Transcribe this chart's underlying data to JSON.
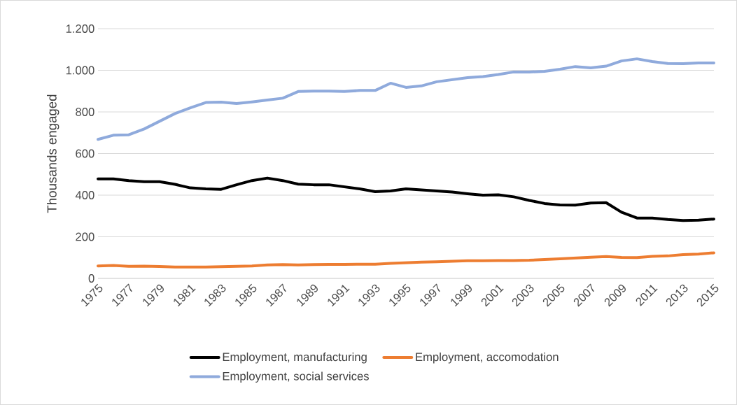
{
  "chart_data": {
    "type": "line",
    "ylabel": "Thousands engaged",
    "x": [
      1975,
      1976,
      1977,
      1978,
      1979,
      1980,
      1981,
      1982,
      1983,
      1984,
      1985,
      1986,
      1987,
      1988,
      1989,
      1990,
      1991,
      1992,
      1993,
      1994,
      1995,
      1996,
      1997,
      1998,
      1999,
      2000,
      2001,
      2002,
      2003,
      2004,
      2005,
      2006,
      2007,
      2008,
      2009,
      2010,
      2011,
      2012,
      2013,
      2014,
      2015
    ],
    "series": [
      {
        "name": "Employment, manufacturing",
        "color": "#000000",
        "values": [
          478,
          478,
          470,
          465,
          465,
          452,
          435,
          430,
          428,
          450,
          470,
          482,
          470,
          453,
          450,
          450,
          440,
          430,
          417,
          420,
          430,
          425,
          420,
          415,
          407,
          400,
          402,
          392,
          375,
          360,
          353,
          352,
          362,
          364,
          318,
          290,
          290,
          283,
          278,
          280,
          285
        ]
      },
      {
        "name": "Employment, accomodation",
        "color": "#ed7d31",
        "values": [
          60,
          62,
          58,
          59,
          57,
          55,
          55,
          55,
          56,
          58,
          60,
          65,
          66,
          65,
          66,
          67,
          67,
          68,
          68,
          72,
          75,
          78,
          80,
          82,
          85,
          85,
          86,
          86,
          87,
          91,
          94,
          98,
          102,
          105,
          101,
          100,
          106,
          108,
          114,
          117,
          123
        ]
      },
      {
        "name": "Employment, social services",
        "color": "#8faadc",
        "values": [
          668,
          688,
          690,
          718,
          755,
          792,
          820,
          845,
          847,
          840,
          848,
          857,
          866,
          898,
          900,
          900,
          898,
          903,
          903,
          938,
          918,
          925,
          945,
          955,
          965,
          970,
          980,
          992,
          992,
          995,
          1005,
          1018,
          1012,
          1020,
          1045,
          1055,
          1042,
          1033,
          1032,
          1035,
          1035
        ]
      }
    ],
    "xlim": [
      1975,
      2015
    ],
    "xticks": [
      1975,
      1977,
      1979,
      1981,
      1983,
      1985,
      1987,
      1989,
      1991,
      1993,
      1995,
      1997,
      1999,
      2001,
      2003,
      2005,
      2007,
      2009,
      2011,
      2013,
      2015
    ],
    "ylim": [
      0,
      1200
    ],
    "yticks": [
      0,
      200,
      400,
      600,
      800,
      {
        "value": 1000,
        "label": "1.000"
      },
      {
        "value": 1200,
        "label": "1.200"
      }
    ],
    "grid": "y",
    "legend": "bottom",
    "marker": "none",
    "line_style": "solid"
  }
}
